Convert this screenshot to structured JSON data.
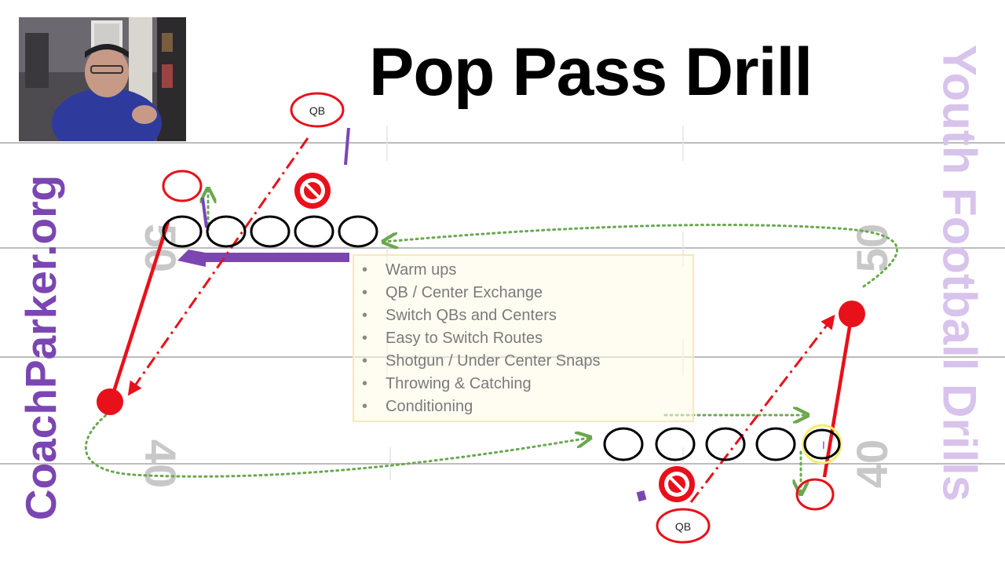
{
  "title": "Pop Pass Drill",
  "brand_left": "CoachParker.org",
  "brand_right": "Youth Football Drills",
  "notes": {
    "items": [
      "Warm ups",
      "QB / Center Exchange",
      "Switch QBs and Centers",
      "Easy to Switch Routes",
      "Shotgun / Under Center Snaps",
      "Throwing & Catching",
      "Conditioning"
    ]
  },
  "players": {
    "qb_top": "QB",
    "qb_bottom": "QB",
    "center_mark": "I"
  },
  "yard_numbers": {
    "left_upper": "50",
    "left_lower": "40",
    "right_upper": "50",
    "right_lower": "40"
  },
  "colors": {
    "route_red": "#e8101a",
    "offense_black": "#000000",
    "brand_purple": "#7b46b2",
    "brand_lilac": "#d8c3ec",
    "motion_green": "#6aa84f",
    "field_line": "#bcbcbc",
    "yard_number": "#c8c8c8"
  },
  "icons": {
    "no_symbol": "no-entry-icon"
  }
}
